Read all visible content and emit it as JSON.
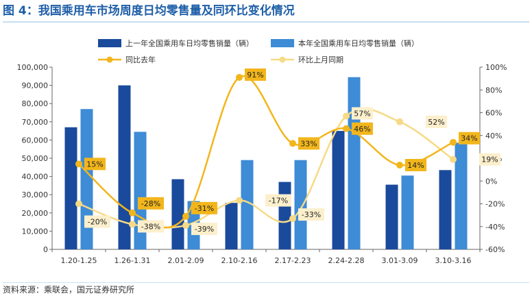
{
  "figure_title": "图 4：我国乘用车市场周度日均零售量及同环比变化情况",
  "source": "资料来源：乘联会，国元证券研究所",
  "colors": {
    "bar_prev": "#1a4a9c",
    "bar_curr": "#3e8bd6",
    "line_yoy": "#f2b61c",
    "line_mom": "#f7da86",
    "label_yoy_bg": "#f2b61c",
    "label_mom_bg": "#fcefcc",
    "axis": "#666666",
    "title_color": "#1f5fa8"
  },
  "chart_data": {
    "type": "bar+line",
    "categories": [
      "1.20-1.25",
      "1.26-1.31",
      "2.01-2.09",
      "2.10-2.16",
      "2.17-2.23",
      "2.24-2.28",
      "3.01-3.09",
      "3.10-3.16"
    ],
    "series": [
      {
        "name": "上一年全国乘用车日均零售销量（辆）",
        "type": "bar",
        "axis": "left",
        "values": [
          67000,
          90000,
          38500,
          25500,
          37000,
          65000,
          35500,
          43500
        ]
      },
      {
        "name": "本年全国乘用车日均零售销量（辆）",
        "type": "bar",
        "axis": "left",
        "values": [
          77000,
          64500,
          26500,
          49000,
          49000,
          94500,
          40500,
          58500
        ]
      },
      {
        "name": "同比去年",
        "type": "line",
        "axis": "right",
        "values": [
          15,
          -28,
          -31,
          91,
          33,
          46,
          14,
          34
        ],
        "labels": [
          "15%",
          "-28%",
          "-31%",
          "91%",
          "33%",
          "46%",
          "14%",
          "34%"
        ]
      },
      {
        "name": "环比上月同期",
        "type": "line",
        "axis": "right",
        "values": [
          -20,
          -38,
          -39,
          -17,
          -33,
          57,
          52,
          19
        ],
        "labels": [
          "-20%",
          "-38%",
          "-39%",
          "-17%",
          "-33%",
          "57%",
          "52%",
          "19%"
        ]
      }
    ],
    "left_axis": {
      "min": 0,
      "max": 100000,
      "step": 10000,
      "ticks": [
        "0",
        "10,000",
        "20,000",
        "30,000",
        "40,000",
        "50,000",
        "60,000",
        "70,000",
        "80,000",
        "90,000",
        "100,000"
      ]
    },
    "right_axis": {
      "min": -60,
      "max": 100,
      "step": 20,
      "ticks": [
        "-60%",
        "-40%",
        "-20%",
        "0%",
        "20%",
        "40%",
        "60%",
        "80%",
        "100%"
      ]
    },
    "legend_position": "top"
  }
}
